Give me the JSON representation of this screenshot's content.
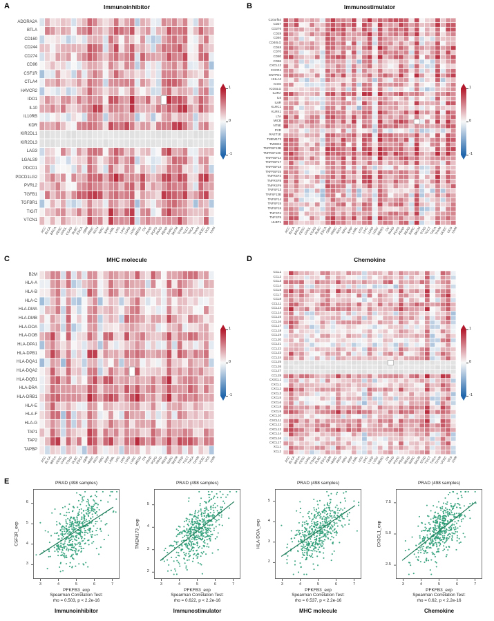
{
  "panel_labels": {
    "A": "A",
    "B": "B",
    "C": "C",
    "D": "D",
    "E": "E"
  },
  "cancer_types": [
    "ACC",
    "BLCA",
    "BRCA",
    "CESC",
    "CHOL",
    "COAD",
    "DLBC",
    "ESCA",
    "GBM",
    "HNSC",
    "KICH",
    "KIRC",
    "KIRP",
    "LAML",
    "LGG",
    "LIHC",
    "LUAD",
    "LUSC",
    "MESO",
    "OV",
    "PAAD",
    "PCPG",
    "PRAD",
    "READ",
    "SARC",
    "SKCM",
    "STAD",
    "TGCT",
    "THCA",
    "THYM",
    "UCEC",
    "UCS",
    "UVM"
  ],
  "colorbar": {
    "ticks": [
      "1",
      "0",
      "-1"
    ],
    "positive_color": "#b2182b",
    "zero_color": "#f7f7f7",
    "negative_color": "#2166ac"
  },
  "scatter_style": {
    "point_color": "#2e9e77",
    "line_color": "#1c7a57"
  },
  "chart_data": [
    {
      "id": "A",
      "type": "heatmap",
      "title": "Immunoinhibitor",
      "value_range": [
        -1,
        1
      ],
      "legend_ticks": [
        "1",
        "0",
        "-1"
      ],
      "rows": [
        "ADORA2A",
        "BTLA",
        "CD160",
        "CD244",
        "CD274",
        "CD96",
        "CSF1R",
        "CTLA4",
        "HAVCR2",
        "IDO1",
        "IL10",
        "IL10RB",
        "KDR",
        "KIR2DL1",
        "KIR2DL3",
        "LAG3",
        "LGALS9",
        "PDCD1",
        "PDCD1LG2",
        "PVRL2",
        "TGFB1",
        "TGFBR1",
        "TIGIT",
        "VTCN1"
      ],
      "na_rows": [
        "KIR2DL1",
        "KIR2DL3"
      ],
      "na_cells": [
        [
          "IDO1",
          "READ"
        ]
      ]
    },
    {
      "id": "B",
      "type": "heatmap",
      "title": "Immunostimulator",
      "value_range": [
        -1,
        1
      ],
      "legend_ticks": [
        "1",
        "0",
        "-1"
      ],
      "rows": [
        "C10orf54",
        "CD27",
        "CD276",
        "CD28",
        "CD40",
        "CD40LG",
        "CD48",
        "CD70",
        "CD80",
        "CD86",
        "CXCL12",
        "CXCR4",
        "ENTPD1",
        "HHLA2",
        "ICOS",
        "ICOSLG",
        "IL2RA",
        "IL6",
        "IL6R",
        "KLRC1",
        "KLRK1",
        "LTA",
        "MICB",
        "NT5E",
        "PVR",
        "RAET1E",
        "TMEM173",
        "TMIGD2",
        "TNFRSF13B",
        "TNFRSF13C",
        "TNFRSF14",
        "TNFRSF17",
        "TNFRSF18",
        "TNFRSF25",
        "TNFRSF4",
        "TNFRSF8",
        "TNFRSF9",
        "TNFSF13",
        "TNFSF13B",
        "TNFSF14",
        "TNFSF15",
        "TNFSF18",
        "TNFSF4",
        "TNFSF9",
        "ULBP1"
      ],
      "na_rows": [],
      "na_cells": [
        [
          "MICB",
          "SKCM"
        ]
      ]
    },
    {
      "id": "C",
      "type": "heatmap",
      "title": "MHC molecule",
      "value_range": [
        -1,
        1
      ],
      "legend_ticks": [
        "1",
        "0",
        "-1"
      ],
      "rows": [
        "B2M",
        "HLA-A",
        "HLA-B",
        "HLA-C",
        "HLA-DMA",
        "HLA-DMB",
        "HLA-DOA",
        "HLA-DOB",
        "HLA-DPA1",
        "HLA-DPB1",
        "HLA-DQA1",
        "HLA-DQA2",
        "HLA-DQB1",
        "HLA-DRA",
        "HLA-DRB1",
        "HLA-E",
        "HLA-F",
        "HLA-G",
        "TAP1",
        "TAP2",
        "TAPBP"
      ],
      "na_rows": [],
      "na_cells": [
        [
          "HLA-DQA2",
          "LUSC"
        ]
      ]
    },
    {
      "id": "D",
      "type": "heatmap",
      "title": "Chemokine",
      "value_range": [
        -1,
        1
      ],
      "legend_ticks": [
        "1",
        "0",
        "-1"
      ],
      "rows": [
        "CCL1",
        "CCL2",
        "CCL3",
        "CCL4",
        "CCL5",
        "CCL7",
        "CCL8",
        "CCL11",
        "CCL13",
        "CCL14",
        "CCL15",
        "CCL16",
        "CCL17",
        "CCL18",
        "CCL19",
        "CCL20",
        "CCL21",
        "CCL22",
        "CCL23",
        "CCL24",
        "CCL25",
        "CCL26",
        "CCL27",
        "CCL28",
        "CX3CL1",
        "CXCL1",
        "CXCL2",
        "CXCL3",
        "CXCL5",
        "CXCL6",
        "CXCL8",
        "CXCL9",
        "CXCL10",
        "CXCL11",
        "CXCL12",
        "CXCL13",
        "CXCL14",
        "CXCL16",
        "CXCL17",
        "XCL1",
        "XCL2"
      ],
      "na_rows": [
        "CCL25",
        "CCL26",
        "CCL27"
      ],
      "na_cells": [
        [
          "CCL25",
          "PAAD"
        ]
      ]
    },
    {
      "id": "E1",
      "type": "scatter",
      "title": "PRAD (498 samples)",
      "xlabel": "PFKFB3_exp",
      "ylabel": "CSF1R_exp",
      "n_points": 498,
      "rho": 0.503,
      "stats": [
        "Spearman Correlation Test:",
        "rho = 0.503, p < 2.2e-16"
      ],
      "category": "Immunoinhibitor",
      "x_ticks": [
        "3",
        "4",
        "5",
        "6",
        "7"
      ],
      "y_ticks": [
        "3",
        "4",
        "5",
        "6"
      ],
      "x_range": [
        2.6,
        7.4
      ],
      "y_range": [
        2.3,
        6.7
      ]
    },
    {
      "id": "E2",
      "type": "scatter",
      "title": "PRAD (498 samples)",
      "xlabel": "PFKFB3_exp",
      "ylabel": "TMEM173_exp",
      "n_points": 498,
      "rho": 0.622,
      "stats": [
        "Spearman Correlation Test:",
        "rho = 0.622, p < 2.2e-16"
      ],
      "category": "Immunostimulator",
      "x_ticks": [
        "3",
        "4",
        "5",
        "6",
        "7"
      ],
      "y_ticks": [
        "2",
        "3",
        "4",
        "5"
      ],
      "x_range": [
        2.6,
        7.4
      ],
      "y_range": [
        1.7,
        5.7
      ]
    },
    {
      "id": "E3",
      "type": "scatter",
      "title": "PRAD (498 samples)",
      "xlabel": "PFKFB3_exp",
      "ylabel": "HLA-DOA_exp",
      "n_points": 498,
      "rho": 0.537,
      "stats": [
        "Spearman Correlation Test:",
        "rho = 0.537, p < 2.2e-16"
      ],
      "category": "MHC molecule",
      "x_ticks": [
        "3",
        "4",
        "5",
        "6",
        "7"
      ],
      "y_ticks": [
        "2",
        "3",
        "4",
        "5"
      ],
      "x_range": [
        2.6,
        7.4
      ],
      "y_range": [
        1.2,
        5.6
      ]
    },
    {
      "id": "E4",
      "type": "scatter",
      "title": "PRAD (498 samples)",
      "xlabel": "PFKFB3_exp",
      "ylabel": "CX3CL1_exp",
      "n_points": 498,
      "rho": 0.62,
      "stats": [
        "Spearman Correlation Test:",
        "rho = 0.62, p < 2.2e-16"
      ],
      "category": "Chemokine",
      "x_ticks": [
        "3",
        "4",
        "5",
        "6",
        "7"
      ],
      "y_ticks": [
        "2.5",
        "5.0",
        "7.5"
      ],
      "x_range": [
        2.6,
        7.4
      ],
      "y_range": [
        1.4,
        8.6
      ]
    }
  ]
}
